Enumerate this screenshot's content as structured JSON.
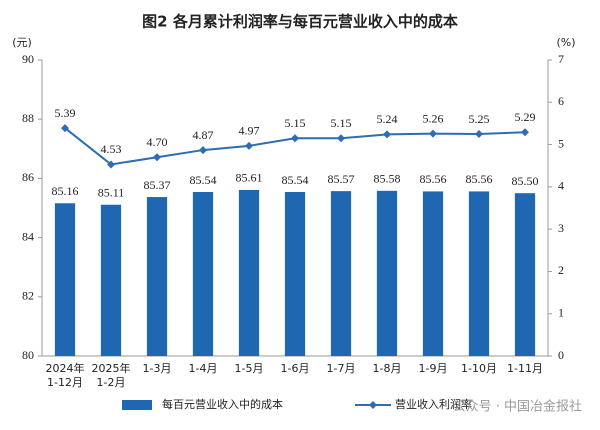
{
  "chart_data": {
    "type": "bar",
    "title": "图2 各月累计利润率与每百元营业收入中的成本",
    "y_label": "(元)",
    "y2_label": "(%)",
    "categories": [
      "2024年\n1-12月",
      "2025年\n1-2月",
      "1-3月",
      "1-4月",
      "1-5月",
      "1-6月",
      "1-7月",
      "1-8月",
      "1-9月",
      "1-10月",
      "1-11月"
    ],
    "series": [
      {
        "name": "每百元营业收入中的成本",
        "type": "bar",
        "color": "#1f67b1",
        "values": [
          85.16,
          85.11,
          85.37,
          85.54,
          85.61,
          85.54,
          85.57,
          85.58,
          85.56,
          85.56,
          85.5
        ],
        "value_labels": [
          "85.16",
          "85.11",
          "85.37",
          "85.54",
          "85.61",
          "85.54",
          "85.57",
          "85.58",
          "85.56",
          "85.56",
          "85.50"
        ]
      },
      {
        "name": "营业收入利润率",
        "type": "line",
        "axis": "y2",
        "color": "#2e6cb3",
        "values": [
          5.39,
          4.53,
          4.7,
          4.87,
          4.97,
          5.15,
          5.15,
          5.24,
          5.26,
          5.25,
          5.29
        ],
        "value_labels": [
          "5.39",
          "4.53",
          "4.70",
          "4.87",
          "4.97",
          "5.15",
          "5.15",
          "5.24",
          "5.26",
          "5.25",
          "5.29"
        ]
      }
    ],
    "ylim": [
      80,
      90
    ],
    "yticks": [
      80,
      82,
      84,
      86,
      88,
      90
    ],
    "y2lim": [
      0,
      7
    ],
    "y2ticks": [
      0,
      1,
      2,
      3,
      4,
      5,
      6,
      7
    ],
    "watermark": "公众号 · 中国冶金报社"
  }
}
